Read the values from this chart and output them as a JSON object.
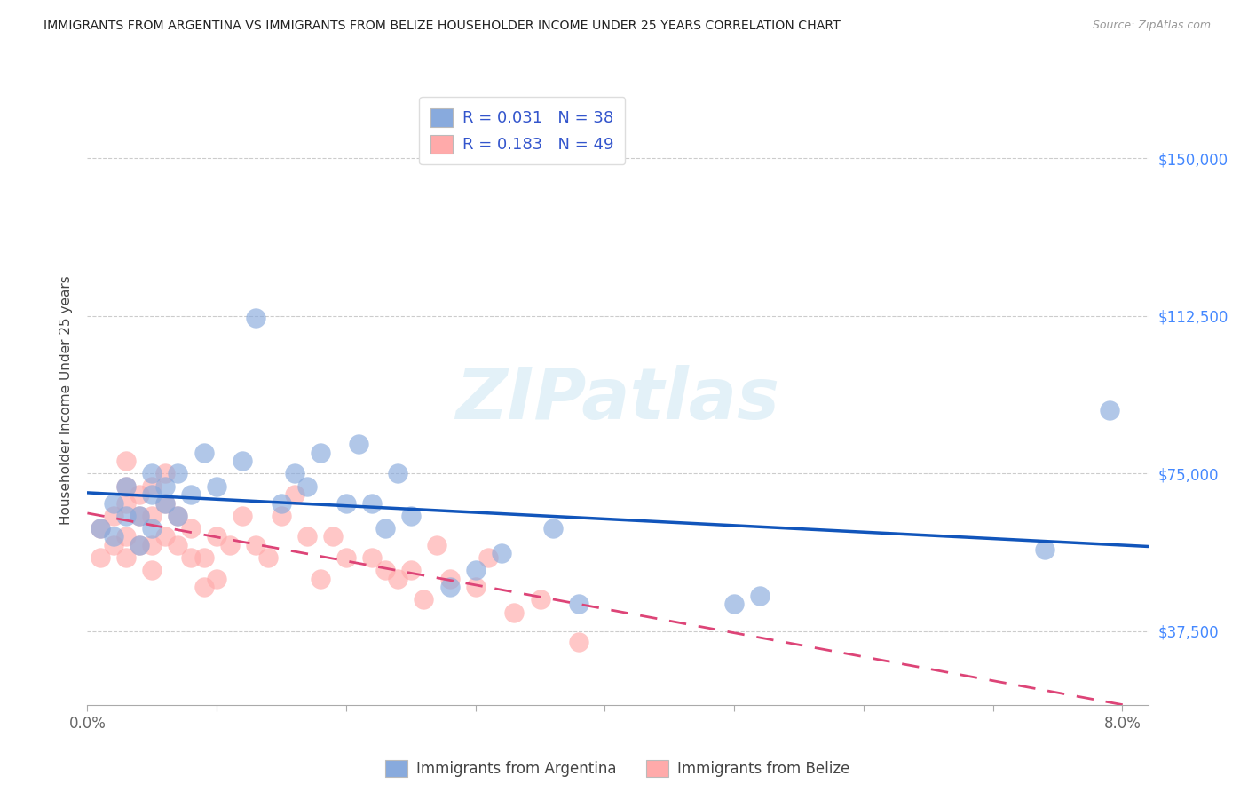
{
  "title": "IMMIGRANTS FROM ARGENTINA VS IMMIGRANTS FROM BELIZE HOUSEHOLDER INCOME UNDER 25 YEARS CORRELATION CHART",
  "source": "Source: ZipAtlas.com",
  "ylabel": "Householder Income Under 25 years",
  "ytick_labels": [
    "$37,500",
    "$75,000",
    "$112,500",
    "$150,000"
  ],
  "ytick_values": [
    37500,
    75000,
    112500,
    150000
  ],
  "xtick_labels": [
    "0.0%",
    "",
    "",
    "",
    "",
    "",
    "",
    "",
    "8.0%"
  ],
  "xtick_values": [
    0.0,
    0.01,
    0.02,
    0.03,
    0.04,
    0.05,
    0.06,
    0.07,
    0.08
  ],
  "xmin": 0.0,
  "xmax": 0.082,
  "ymin": 20000,
  "ymax": 165000,
  "watermark": "ZIPatlas",
  "legend1_label": "R = 0.031   N = 38",
  "legend2_label": "R = 0.183   N = 49",
  "legend_bottom1": "Immigrants from Argentina",
  "legend_bottom2": "Immigrants from Belize",
  "argentina_color": "#88AADD",
  "belize_color": "#FFAAAA",
  "argentina_line_color": "#1155BB",
  "belize_line_color": "#DD4477",
  "grid_color": "#CCCCCC",
  "argentina_x": [
    0.001,
    0.002,
    0.002,
    0.003,
    0.003,
    0.004,
    0.004,
    0.005,
    0.005,
    0.005,
    0.006,
    0.006,
    0.007,
    0.007,
    0.008,
    0.009,
    0.01,
    0.012,
    0.013,
    0.015,
    0.016,
    0.017,
    0.018,
    0.02,
    0.021,
    0.022,
    0.023,
    0.024,
    0.025,
    0.028,
    0.03,
    0.032,
    0.036,
    0.038,
    0.05,
    0.052,
    0.074,
    0.079
  ],
  "argentina_y": [
    62000,
    60000,
    68000,
    65000,
    72000,
    58000,
    65000,
    62000,
    70000,
    75000,
    68000,
    72000,
    65000,
    75000,
    70000,
    80000,
    72000,
    78000,
    112000,
    68000,
    75000,
    72000,
    80000,
    68000,
    82000,
    68000,
    62000,
    75000,
    65000,
    48000,
    52000,
    56000,
    62000,
    44000,
    44000,
    46000,
    57000,
    90000
  ],
  "belize_x": [
    0.001,
    0.001,
    0.002,
    0.002,
    0.003,
    0.003,
    0.003,
    0.003,
    0.003,
    0.004,
    0.004,
    0.004,
    0.005,
    0.005,
    0.005,
    0.005,
    0.006,
    0.006,
    0.006,
    0.007,
    0.007,
    0.008,
    0.008,
    0.009,
    0.009,
    0.01,
    0.01,
    0.011,
    0.012,
    0.013,
    0.014,
    0.015,
    0.016,
    0.017,
    0.018,
    0.019,
    0.02,
    0.022,
    0.023,
    0.024,
    0.025,
    0.026,
    0.027,
    0.028,
    0.03,
    0.031,
    0.033,
    0.035,
    0.038
  ],
  "belize_y": [
    55000,
    62000,
    58000,
    65000,
    55000,
    60000,
    68000,
    72000,
    78000,
    58000,
    65000,
    70000,
    52000,
    58000,
    65000,
    72000,
    60000,
    68000,
    75000,
    58000,
    65000,
    55000,
    62000,
    48000,
    55000,
    50000,
    60000,
    58000,
    65000,
    58000,
    55000,
    65000,
    70000,
    60000,
    50000,
    60000,
    55000,
    55000,
    52000,
    50000,
    52000,
    45000,
    58000,
    50000,
    48000,
    55000,
    42000,
    45000,
    35000
  ]
}
